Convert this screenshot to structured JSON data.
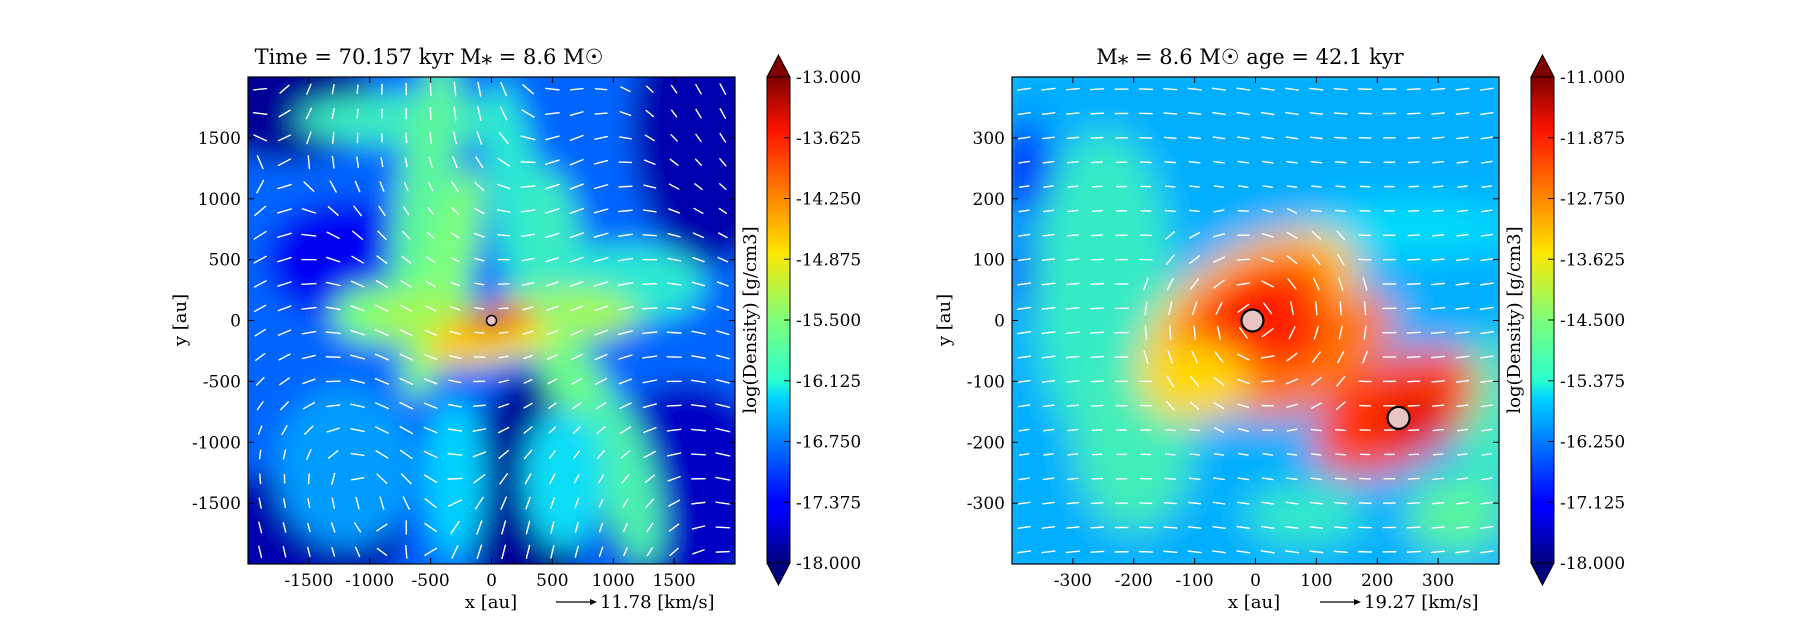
{
  "chart_data": [
    {
      "type": "heatmap",
      "title": "Time = 70.157 kyr    M$_*$ = 8.6 M$_\\odot$",
      "title_text": "Time = 70.157 kyr    M⁎ = 8.6 M☉",
      "xlabel": "x [au]",
      "ylabel": "y [au]",
      "colorbar_label": "log(Density) [g/cm3]",
      "xlim": [
        -2000,
        2000
      ],
      "ylim": [
        -2000,
        2000
      ],
      "xticks": [
        -1500,
        -1000,
        -500,
        0,
        500,
        1000,
        1500
      ],
      "yticks": [
        -1500,
        -1000,
        -500,
        0,
        500,
        1000,
        1500
      ],
      "clim": [
        -18.0,
        -13.0
      ],
      "colorbar_ticks": [
        "-13.000",
        "-13.625",
        "-14.250",
        "-14.875",
        "-15.500",
        "-16.125",
        "-16.750",
        "-17.375",
        "-18.000"
      ],
      "colormap": "jet",
      "quiver_key": "11.78 [km/s]",
      "stars": [
        {
          "x": 0,
          "y": 0
        }
      ]
    },
    {
      "type": "heatmap",
      "title": "M$_*$ = 8.6 M$_\\odot$          age = 42.1 kyr",
      "title_text": "M⁎ = 8.6 M☉          age = 42.1 kyr",
      "xlabel": "x [au]",
      "ylabel": "y [au]",
      "colorbar_label": "log(Density) [g/cm3]",
      "xlim": [
        -400,
        400
      ],
      "ylim": [
        -400,
        400
      ],
      "xticks": [
        -300,
        -200,
        -100,
        0,
        100,
        200,
        300
      ],
      "yticks": [
        -300,
        -200,
        -100,
        0,
        100,
        200,
        300
      ],
      "clim": [
        -18.0,
        -11.0
      ],
      "colorbar_ticks": [
        "-11.000",
        "-11.875",
        "-12.750",
        "-13.625",
        "-14.500",
        "-15.375",
        "-16.250",
        "-17.125",
        "-18.000"
      ],
      "colormap": "jet",
      "quiver_key": "19.27 [km/s]",
      "stars": [
        {
          "x": -5,
          "y": 0
        },
        {
          "x": 235,
          "y": -160
        }
      ]
    }
  ]
}
